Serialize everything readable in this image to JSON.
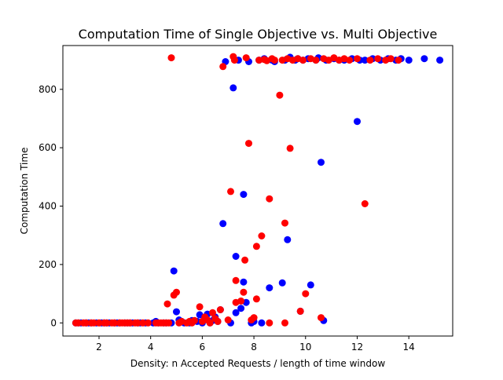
{
  "chart_data": {
    "type": "scatter",
    "title": "Computation Time of Single Objective vs. Multi Objective",
    "xlabel": "Density: n Accepted Requests / length of time window",
    "ylabel": "Computation Time",
    "xlim": [
      0.6,
      15.7
    ],
    "ylim": [
      -45,
      950
    ],
    "xticks": [
      2,
      4,
      6,
      8,
      10,
      12,
      14
    ],
    "yticks": [
      0,
      200,
      400,
      600,
      800
    ],
    "grid": false,
    "legend": "none",
    "series": [
      {
        "color": "#0000ff",
        "points": [
          [
            1.1,
            0
          ],
          [
            1.2,
            0
          ],
          [
            1.3,
            0
          ],
          [
            1.5,
            0
          ],
          [
            1.6,
            0
          ],
          [
            1.7,
            0
          ],
          [
            1.9,
            0
          ],
          [
            2.1,
            0
          ],
          [
            2.2,
            0
          ],
          [
            2.3,
            0
          ],
          [
            2.4,
            0
          ],
          [
            2.6,
            0
          ],
          [
            2.7,
            0
          ],
          [
            2.8,
            0
          ],
          [
            3.0,
            0
          ],
          [
            3.1,
            0
          ],
          [
            3.2,
            0
          ],
          [
            3.3,
            0
          ],
          [
            3.5,
            0
          ],
          [
            3.6,
            0
          ],
          [
            3.8,
            0
          ],
          [
            4.1,
            0
          ],
          [
            4.2,
            5
          ],
          [
            4.3,
            0
          ],
          [
            4.5,
            0
          ],
          [
            4.6,
            0
          ],
          [
            4.8,
            0
          ],
          [
            4.9,
            178
          ],
          [
            5.0,
            38
          ],
          [
            5.1,
            10
          ],
          [
            5.2,
            5
          ],
          [
            5.3,
            0
          ],
          [
            5.5,
            0
          ],
          [
            5.6,
            8
          ],
          [
            5.8,
            5
          ],
          [
            5.9,
            28
          ],
          [
            6.0,
            0
          ],
          [
            6.1,
            15
          ],
          [
            6.2,
            30
          ],
          [
            6.3,
            0
          ],
          [
            6.4,
            8
          ],
          [
            6.5,
            20
          ],
          [
            6.6,
            5
          ],
          [
            6.7,
            45
          ],
          [
            6.8,
            340
          ],
          [
            6.9,
            895
          ],
          [
            7.1,
            0
          ],
          [
            7.2,
            805
          ],
          [
            7.3,
            35
          ],
          [
            7.3,
            228
          ],
          [
            7.4,
            900
          ],
          [
            7.5,
            50
          ],
          [
            7.6,
            440
          ],
          [
            7.6,
            140
          ],
          [
            7.7,
            70
          ],
          [
            7.8,
            895
          ],
          [
            7.9,
            0
          ],
          [
            8.0,
            5
          ],
          [
            8.2,
            900
          ],
          [
            8.3,
            0
          ],
          [
            8.4,
            905
          ],
          [
            8.6,
            120
          ],
          [
            8.7,
            900
          ],
          [
            8.8,
            895
          ],
          [
            9.1,
            137
          ],
          [
            9.2,
            900
          ],
          [
            9.3,
            285
          ],
          [
            9.4,
            910
          ],
          [
            9.6,
            900
          ],
          [
            9.7,
            905
          ],
          [
            9.8,
            40
          ],
          [
            9.9,
            900
          ],
          [
            10.1,
            905
          ],
          [
            10.2,
            130
          ],
          [
            10.4,
            900
          ],
          [
            10.5,
            908
          ],
          [
            10.6,
            550
          ],
          [
            10.7,
            8
          ],
          [
            10.8,
            900
          ],
          [
            11.1,
            905
          ],
          [
            11.3,
            900
          ],
          [
            11.5,
            900
          ],
          [
            11.8,
            905
          ],
          [
            12.0,
            690
          ],
          [
            12.1,
            900
          ],
          [
            12.3,
            900
          ],
          [
            12.6,
            905
          ],
          [
            12.9,
            900
          ],
          [
            13.2,
            905
          ],
          [
            13.5,
            900
          ],
          [
            13.7,
            905
          ],
          [
            14.0,
            900
          ],
          [
            14.6,
            905
          ],
          [
            15.2,
            900
          ]
        ]
      },
      {
        "color": "#ff0000",
        "points": [
          [
            1.1,
            0
          ],
          [
            1.2,
            0
          ],
          [
            1.4,
            0
          ],
          [
            1.5,
            0
          ],
          [
            1.7,
            0
          ],
          [
            1.8,
            0
          ],
          [
            2.0,
            0
          ],
          [
            2.2,
            0
          ],
          [
            2.3,
            0
          ],
          [
            2.5,
            0
          ],
          [
            2.6,
            0
          ],
          [
            2.8,
            0
          ],
          [
            2.9,
            0
          ],
          [
            3.0,
            0
          ],
          [
            3.1,
            0
          ],
          [
            3.2,
            0
          ],
          [
            3.4,
            0
          ],
          [
            3.5,
            0
          ],
          [
            3.7,
            0
          ],
          [
            3.9,
            0
          ],
          [
            4.2,
            0
          ],
          [
            4.3,
            0
          ],
          [
            4.4,
            0
          ],
          [
            4.5,
            0
          ],
          [
            4.6,
            0
          ],
          [
            4.7,
            0
          ],
          [
            4.65,
            65
          ],
          [
            4.8,
            908
          ],
          [
            4.9,
            95
          ],
          [
            5.0,
            105
          ],
          [
            5.1,
            0
          ],
          [
            5.2,
            5
          ],
          [
            5.4,
            0
          ],
          [
            5.5,
            5
          ],
          [
            5.6,
            0
          ],
          [
            5.7,
            8
          ],
          [
            5.9,
            55
          ],
          [
            6.0,
            5
          ],
          [
            6.1,
            20
          ],
          [
            6.2,
            10
          ],
          [
            6.3,
            0
          ],
          [
            6.4,
            35
          ],
          [
            6.5,
            15
          ],
          [
            6.6,
            5
          ],
          [
            6.7,
            45
          ],
          [
            6.8,
            878
          ],
          [
            7.0,
            10
          ],
          [
            7.1,
            450
          ],
          [
            7.2,
            912
          ],
          [
            7.25,
            900
          ],
          [
            7.3,
            145
          ],
          [
            7.3,
            70
          ],
          [
            7.5,
            75
          ],
          [
            7.6,
            105
          ],
          [
            7.65,
            215
          ],
          [
            7.7,
            908
          ],
          [
            7.8,
            615
          ],
          [
            7.9,
            10
          ],
          [
            8.0,
            18
          ],
          [
            8.1,
            262
          ],
          [
            8.1,
            82
          ],
          [
            8.2,
            900
          ],
          [
            8.3,
            298
          ],
          [
            8.4,
            902
          ],
          [
            8.5,
            898
          ],
          [
            8.6,
            425
          ],
          [
            8.6,
            0
          ],
          [
            8.7,
            905
          ],
          [
            8.8,
            900
          ],
          [
            9.0,
            780
          ],
          [
            9.1,
            900
          ],
          [
            9.2,
            342
          ],
          [
            9.2,
            0
          ],
          [
            9.3,
            905
          ],
          [
            9.4,
            598
          ],
          [
            9.5,
            900
          ],
          [
            9.7,
            905
          ],
          [
            9.8,
            40
          ],
          [
            9.9,
            900
          ],
          [
            10.0,
            100
          ],
          [
            10.2,
            905
          ],
          [
            10.4,
            900
          ],
          [
            10.6,
            18
          ],
          [
            10.7,
            905
          ],
          [
            10.9,
            900
          ],
          [
            11.1,
            908
          ],
          [
            11.3,
            900
          ],
          [
            11.5,
            905
          ],
          [
            11.7,
            900
          ],
          [
            12.0,
            905
          ],
          [
            12.3,
            408
          ],
          [
            12.5,
            900
          ],
          [
            12.8,
            905
          ],
          [
            13.1,
            900
          ],
          [
            13.3,
            905
          ],
          [
            13.6,
            900
          ]
        ]
      }
    ]
  }
}
